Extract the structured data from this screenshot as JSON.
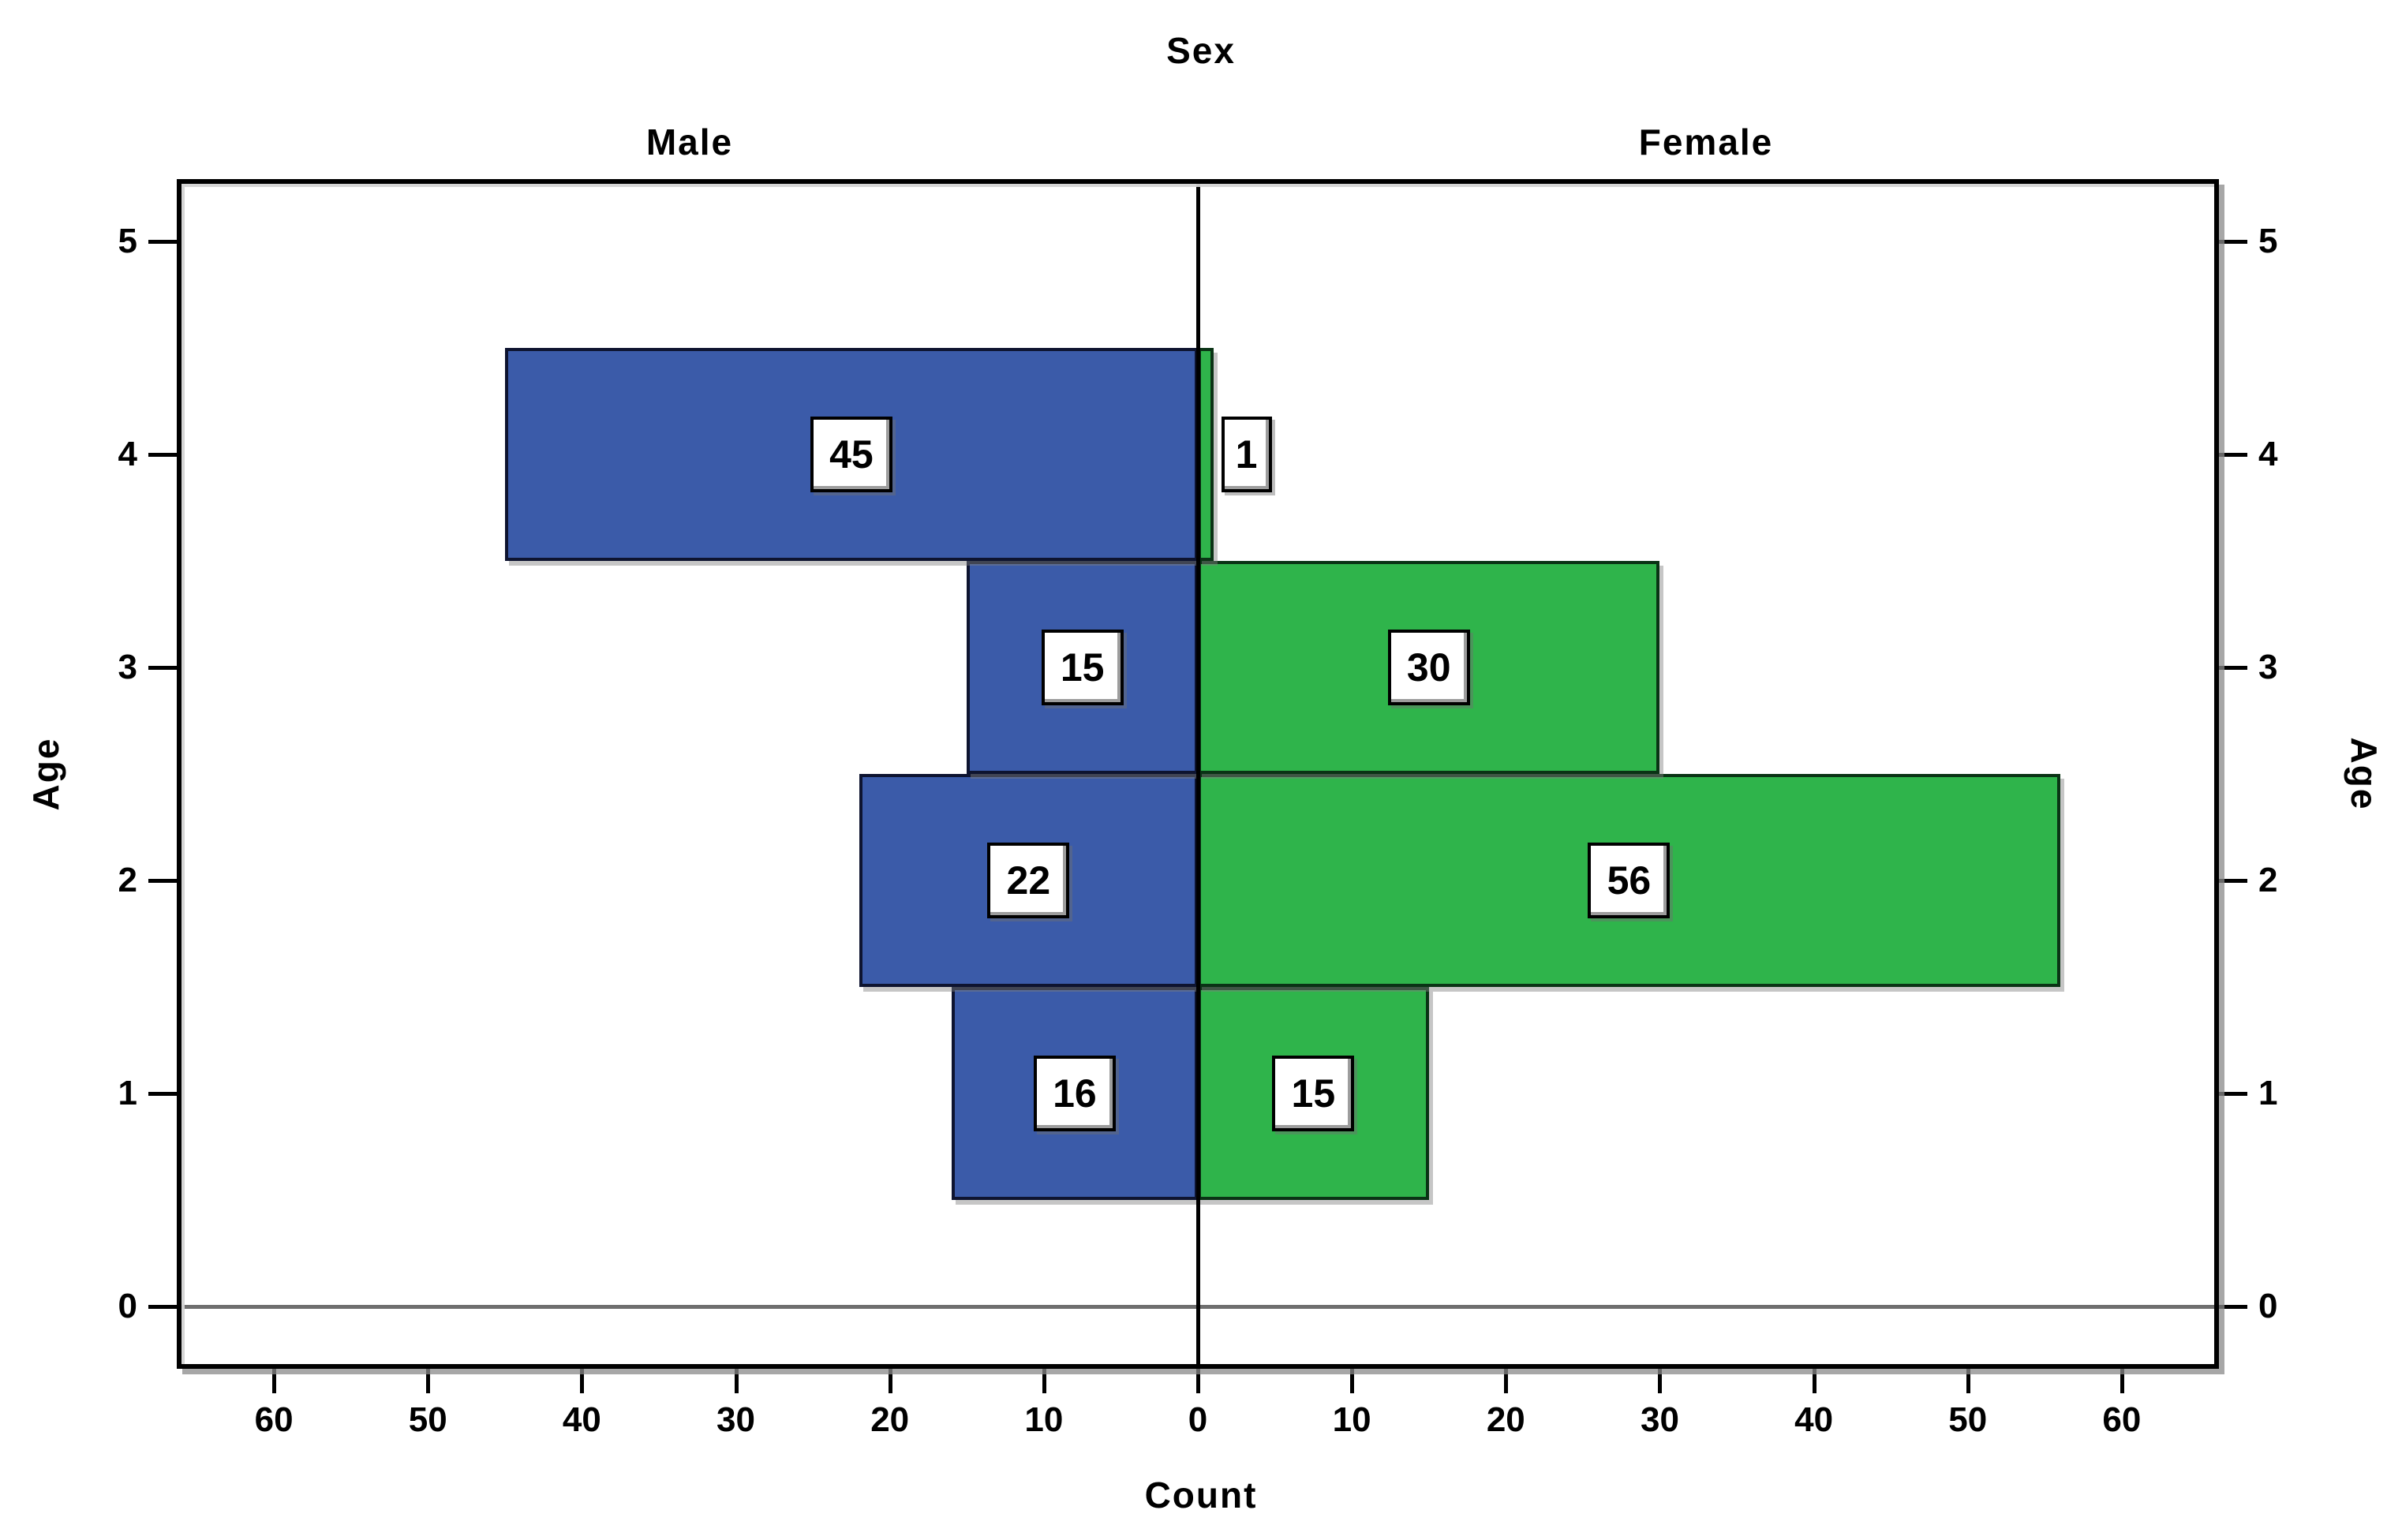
{
  "chart_data": {
    "type": "bar",
    "subtype": "population-pyramid",
    "title": "Sex",
    "panels": [
      "Male",
      "Female"
    ],
    "xlabel": "Count",
    "ylabel_left": "Age",
    "ylabel_right": "Age",
    "ages": [
      1,
      2,
      3,
      4
    ],
    "series": [
      {
        "name": "Male",
        "color": "#3b5ba9",
        "border": "#0e1430",
        "values": [
          16,
          22,
          15,
          45
        ]
      },
      {
        "name": "Female",
        "color": "#2fb44b",
        "border": "#0a3315",
        "values": [
          15,
          56,
          30,
          1
        ]
      }
    ],
    "x_ticks": [
      0,
      10,
      20,
      30,
      40,
      50,
      60
    ],
    "y_ticks": [
      0,
      1,
      2,
      3,
      4,
      5
    ],
    "x_max_per_side": 66,
    "ylim": [
      -0.27,
      5.27
    ],
    "grid": "zero-line-only",
    "legend": "none",
    "bar_label_bg": "#ffffff",
    "bar_label_border": "#000000",
    "zero_line_color": "#6f6f6f"
  }
}
